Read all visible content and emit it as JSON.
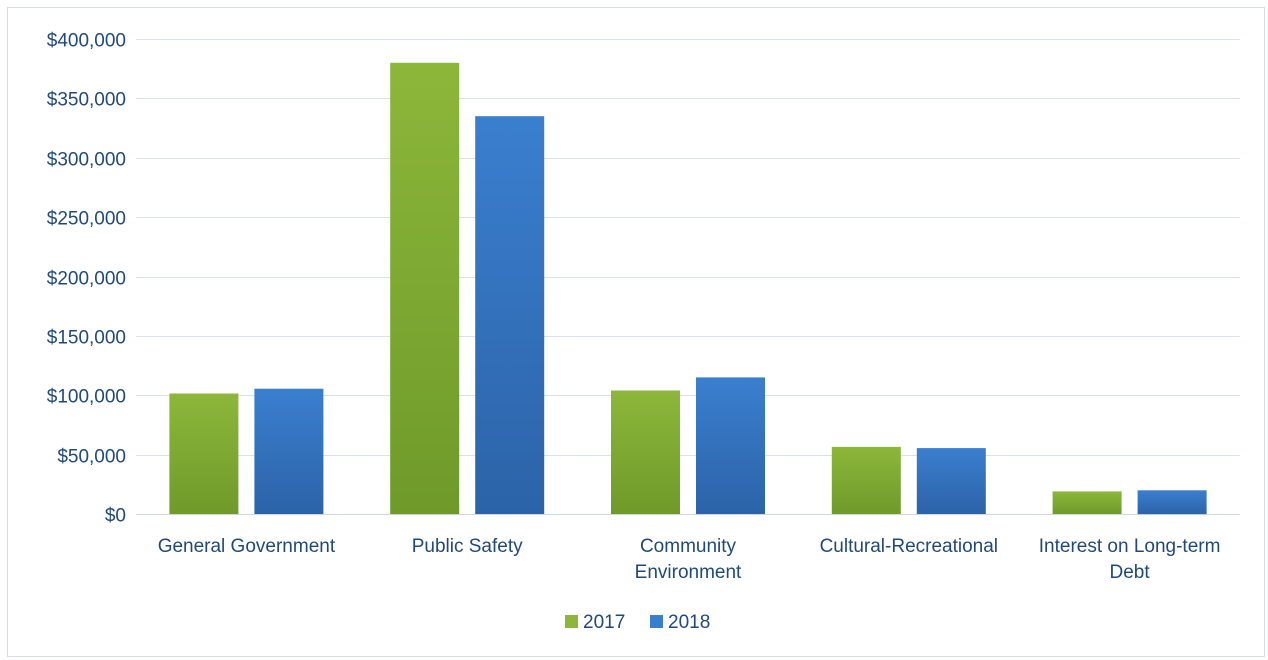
{
  "chart_data": {
    "type": "bar",
    "title": "",
    "xlabel": "",
    "ylabel": "",
    "categories": [
      [
        "General Government"
      ],
      [
        "Public Safety"
      ],
      [
        "Community",
        "Environment"
      ],
      [
        "Cultural-Recreational"
      ],
      [
        "Interest on Long-term",
        "Debt"
      ]
    ],
    "series": [
      {
        "name": "2017",
        "values": [
          101500,
          380000,
          104000,
          56500,
          19000
        ],
        "color": "#8cb73a",
        "color_dark": "#6f9a2a"
      },
      {
        "name": "2018",
        "values": [
          105500,
          335000,
          115000,
          55500,
          20000
        ],
        "color": "#3a7fcf",
        "color_dark": "#2c63a8"
      }
    ],
    "ylim": [
      0,
      400000
    ],
    "yticks": [
      0,
      50000,
      100000,
      150000,
      200000,
      250000,
      300000,
      350000,
      400000
    ],
    "ytick_labels": [
      "$0",
      "$50,000",
      "$100,000",
      "$150,000",
      "$200,000",
      "$250,000",
      "$300,000",
      "$350,000",
      "$400,000"
    ],
    "grid": true,
    "legend_position": "bottom"
  }
}
